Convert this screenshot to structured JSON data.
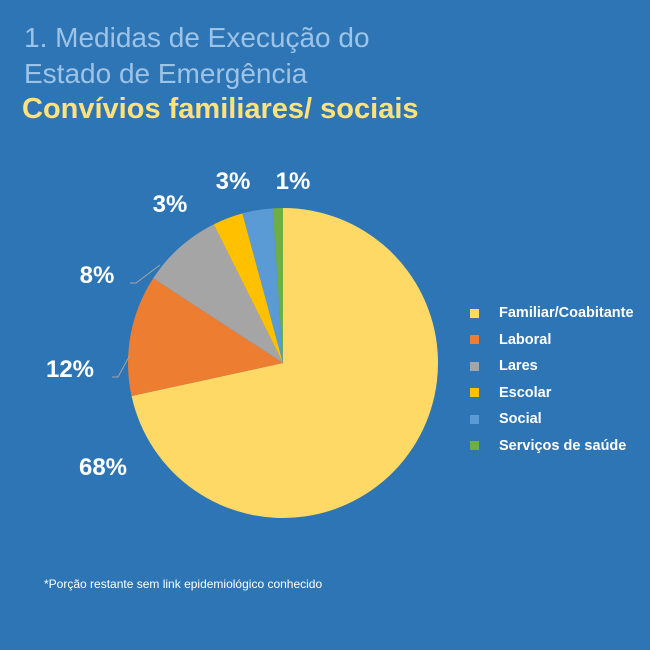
{
  "header": {
    "title": "1. Medidas de Execução do Estado de Emergência",
    "subtitle": "Convívios familiares/ sociais"
  },
  "footnote": "*Porção restante sem link epidemiológico conhecido",
  "chart_data": {
    "type": "pie",
    "categories": [
      "Familiar/Coabitante",
      "Laboral",
      "Lares",
      "Escolar",
      "Social",
      "Serviços de saúde"
    ],
    "values": [
      68,
      12,
      8,
      3,
      3,
      1
    ],
    "data_labels": [
      "68%",
      "12%",
      "8%",
      "3%",
      "3%",
      "1%"
    ],
    "colors": [
      "#ffd966",
      "#ed7d31",
      "#a5a5a5",
      "#ffc000",
      "#5b9bd5",
      "#70ad47"
    ],
    "start": "top, clockwise",
    "legend_position": "right"
  }
}
